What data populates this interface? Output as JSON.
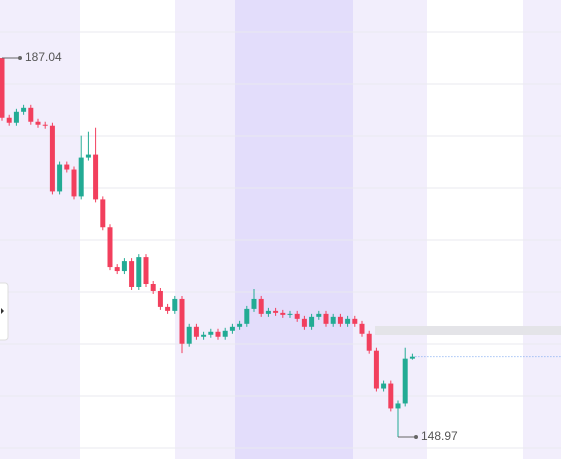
{
  "chart_data": {
    "type": "candlestick",
    "open": [
      187.04,
      181.04,
      180.54,
      181.64,
      182.04,
      180.64,
      180.34,
      180.24,
      173.64,
      176.34,
      175.84,
      173.14,
      177.04,
      177.34,
      172.84,
      170.04,
      166.04,
      165.64,
      166.64,
      164.04,
      167.04,
      164.34,
      163.64,
      162.04,
      161.64,
      162.84,
      158.34,
      160.04,
      159.04,
      159.24,
      159.54,
      159.04,
      159.64,
      160.04,
      160.34,
      161.84,
      162.84,
      161.34,
      161.64,
      161.44,
      161.24,
      161.34,
      160.84,
      160.04,
      161.04,
      161.34,
      160.34,
      161.04,
      160.34,
      160.84,
      160.34,
      159.34,
      157.64,
      153.84,
      154.34,
      151.84,
      152.34,
      156.84
    ],
    "high": [
      187.04,
      181.34,
      181.94,
      182.34,
      182.34,
      180.94,
      180.64,
      180.54,
      176.64,
      176.64,
      176.14,
      179.24,
      179.64,
      180.04,
      173.14,
      170.34,
      166.34,
      166.94,
      166.94,
      167.34,
      167.34,
      164.64,
      163.94,
      162.34,
      163.14,
      163.14,
      160.34,
      160.34,
      159.54,
      159.84,
      159.84,
      159.94,
      160.34,
      160.64,
      162.14,
      163.84,
      163.14,
      161.94,
      161.94,
      161.74,
      161.64,
      161.64,
      161.14,
      161.34,
      161.64,
      161.64,
      161.34,
      161.34,
      161.14,
      161.14,
      160.64,
      159.64,
      157.94,
      154.64,
      154.64,
      152.64,
      157.94,
      157.34
    ],
    "low": [
      180.74,
      180.24,
      180.24,
      181.34,
      180.34,
      180.04,
      179.94,
      173.34,
      173.34,
      175.54,
      172.84,
      172.84,
      176.74,
      172.54,
      169.74,
      165.74,
      165.34,
      165.34,
      163.74,
      163.74,
      164.04,
      163.34,
      161.74,
      161.34,
      161.34,
      157.4,
      158.04,
      158.74,
      158.74,
      158.94,
      158.74,
      158.74,
      159.34,
      159.74,
      160.04,
      161.54,
      161.04,
      161.04,
      161.14,
      160.94,
      160.94,
      160.54,
      159.74,
      159.74,
      160.74,
      160.04,
      160.04,
      160.04,
      160.04,
      160.04,
      159.04,
      157.34,
      153.54,
      153.54,
      151.54,
      148.97,
      152.04,
      156.74
    ],
    "close": [
      181.04,
      180.54,
      181.64,
      182.04,
      180.64,
      180.34,
      180.24,
      173.64,
      176.34,
      175.84,
      173.14,
      177.04,
      177.34,
      172.84,
      170.04,
      166.04,
      165.64,
      166.64,
      164.04,
      167.04,
      164.34,
      163.64,
      162.04,
      161.64,
      162.84,
      158.34,
      160.04,
      159.04,
      159.24,
      159.54,
      159.04,
      159.64,
      160.04,
      160.34,
      161.84,
      162.84,
      161.34,
      161.64,
      161.44,
      161.24,
      161.34,
      160.84,
      160.04,
      161.04,
      161.34,
      160.34,
      161.04,
      160.34,
      160.84,
      160.34,
      159.34,
      157.64,
      153.84,
      154.34,
      151.84,
      152.34,
      156.84,
      157.04
    ],
    "up_color": "#22ab94",
    "down_color": "#f23f5d",
    "ylim": [
      146.76,
      192.87
    ],
    "max_label": 187.04,
    "min_label": 148.97
  }
}
